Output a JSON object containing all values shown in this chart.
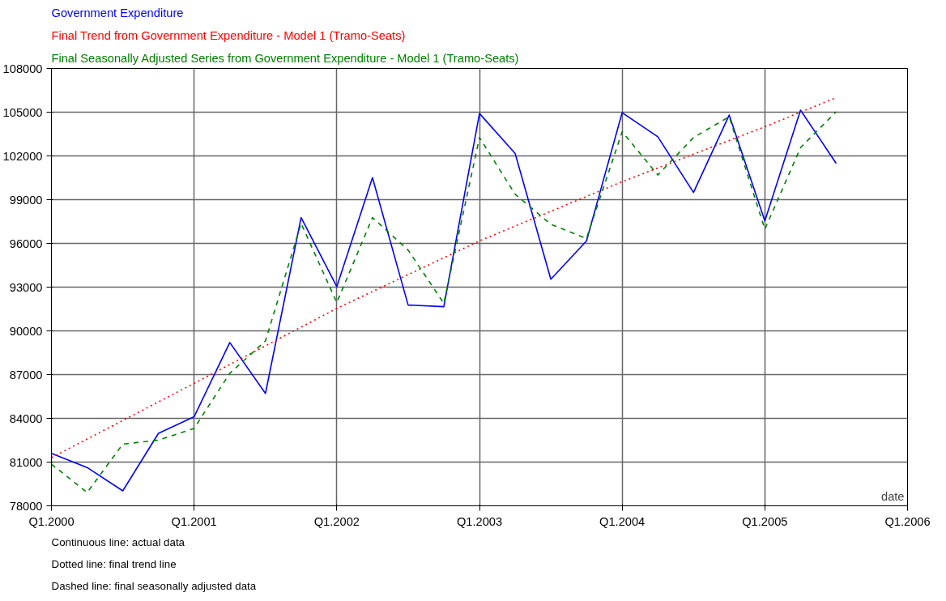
{
  "chart_data": {
    "type": "line",
    "xlabel": "date",
    "legend": "top left",
    "grid": true,
    "ylim": [
      78000,
      108000
    ],
    "yticks": [
      78000,
      81000,
      84000,
      87000,
      90000,
      93000,
      96000,
      99000,
      102000,
      105000,
      108000
    ],
    "categories": [
      "Q1.2000",
      null,
      null,
      null,
      "Q1.2001",
      null,
      null,
      null,
      "Q1.2002",
      null,
      null,
      null,
      "Q1.2003",
      null,
      null,
      null,
      "Q1.2004",
      null,
      null,
      null,
      "Q1.2005",
      null,
      null,
      null,
      "Q1.2006"
    ],
    "series": [
      {
        "name": "Government Expenditure",
        "color": "#0000ff",
        "line_style": "solid",
        "values": [
          81600,
          80630,
          79030,
          82970,
          84110,
          89200,
          85710,
          97770,
          93030,
          100510,
          91770,
          91660,
          104910,
          102170,
          93540,
          96170,
          104970,
          103310,
          99490,
          104800,
          97540,
          105140,
          101490,
          null,
          null
        ]
      },
      {
        "name": "Final Trend from Government Expenditure - Model 1 (Tramo-Seats)",
        "color": "#ff0000",
        "line_style": "dotted",
        "values": [
          81310,
          82580,
          83850,
          85130,
          86400,
          87690,
          88970,
          90260,
          91540,
          92700,
          93860,
          95010,
          96170,
          97190,
          98200,
          99220,
          100230,
          101170,
          102120,
          103060,
          104000,
          105000,
          106000,
          null,
          null
        ]
      },
      {
        "name": "Final Seasonally Adjusted Series from Government Expenditure - Model 1 (Tramo-Seats)",
        "color": "#008000",
        "line_style": "dashed",
        "values": [
          80860,
          78910,
          82230,
          82510,
          83310,
          87090,
          89310,
          97370,
          91940,
          97770,
          95540,
          91890,
          103260,
          99370,
          97310,
          96340,
          103660,
          100690,
          103260,
          104690,
          96970,
          102570,
          105030,
          null,
          null
        ]
      }
    ],
    "annotations": [
      "Continuous line: actual data",
      "Dotted line: final trend line",
      "Dashed line: final seasonally adjusted data"
    ]
  }
}
